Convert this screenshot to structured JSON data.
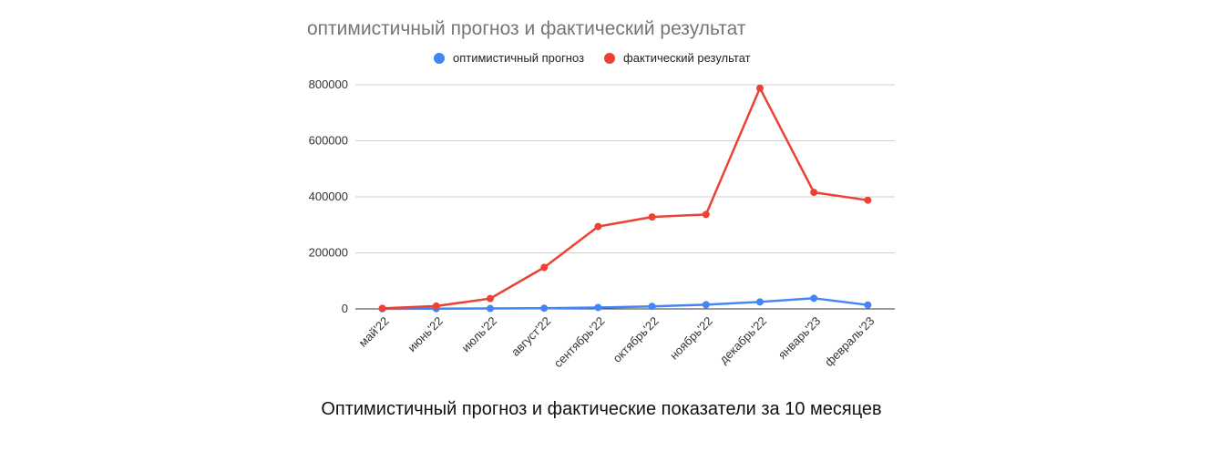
{
  "colors": {
    "forecast": "#4285F4",
    "actual": "#EA4335",
    "grid": "#d0d0d0",
    "axis": "#333333"
  },
  "caption": "Оптимистичный прогноз и фактические показатели за 10 месяцев",
  "chart_data": {
    "type": "line",
    "title": "оптимистичный прогноз и фактический результат",
    "xlabel": "",
    "ylabel": "",
    "legend_position": "top",
    "grid": true,
    "ylim": [
      0,
      800000
    ],
    "yticks": [
      0,
      200000,
      400000,
      600000,
      800000
    ],
    "categories": [
      "май'22",
      "июнь'22",
      "июль'22",
      "август'22",
      "сентябрь'22",
      "октябрь'22",
      "ноябрь'22",
      "декабрь'22",
      "январь'23",
      "февраль'23"
    ],
    "series": [
      {
        "name": "оптимистичный прогноз",
        "color": "#4285F4",
        "values": [
          500,
          1000,
          1500,
          2500,
          5000,
          9000,
          15000,
          25000,
          38000,
          14000
        ]
      },
      {
        "name": "фактический результат",
        "color": "#EA4335",
        "values": [
          2000,
          10000,
          37000,
          148000,
          294000,
          328000,
          337000,
          788000,
          416000,
          388000
        ]
      }
    ]
  }
}
